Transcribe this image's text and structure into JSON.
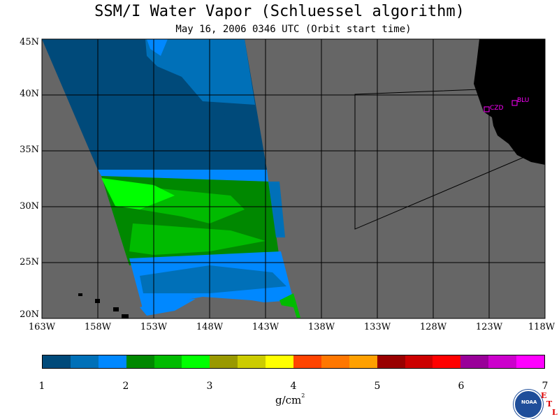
{
  "title": "SSM/I Water Vapor (Schluessel algorithm)",
  "subtitle": "May 16, 2006  0346 UTC  (Orbit start time)",
  "lat_labels": [
    "45N",
    "40N",
    "35N",
    "30N",
    "25N",
    "20N"
  ],
  "lon_labels": [
    "163W",
    "158W",
    "153W",
    "148W",
    "143W",
    "138W",
    "133W",
    "128W",
    "123W",
    "118W"
  ],
  "stations": [
    {
      "name": "CZD"
    },
    {
      "name": "BLU"
    }
  ],
  "colorbar": {
    "colors": [
      "#004a7a",
      "#0070b8",
      "#0088ff",
      "#008800",
      "#00bb00",
      "#00ff00",
      "#999900",
      "#cccc00",
      "#ffff00",
      "#ff4400",
      "#ff7700",
      "#ffa000",
      "#990000",
      "#cc0000",
      "#ff0000",
      "#990099",
      "#cc00cc",
      "#ff00ff"
    ],
    "ticks": [
      "1",
      "2",
      "3",
      "4",
      "5",
      "6",
      "7"
    ],
    "unit": "g/cm",
    "unit_sup": "2"
  },
  "logo": {
    "text": "NOAA"
  },
  "etl": [
    "E",
    "T",
    "L"
  ],
  "map_colors": {
    "ocean": "#666666",
    "land": "#000000",
    "grid": "#000000",
    "station": "#ff00ff"
  },
  "chart_data": {
    "type": "heatmap",
    "title": "SSM/I Water Vapor (Schluessel algorithm)",
    "subtitle": "May 16, 2006  0346 UTC  (Orbit start time)",
    "x_range": [
      "163W",
      "118W"
    ],
    "y_range": [
      "20N",
      "45N"
    ],
    "unit": "g/cm2",
    "scale": [
      1,
      7
    ],
    "bands": [
      {
        "lat": "45N-35N",
        "value": 1.2
      },
      {
        "lat": "38N-35N",
        "value": 1.4
      },
      {
        "lat": "34N-33N",
        "value": 1.7
      },
      {
        "lat": "33N-26N",
        "value": 2.2
      },
      {
        "lat": "26N-20N",
        "value": 1.7
      }
    ]
  }
}
